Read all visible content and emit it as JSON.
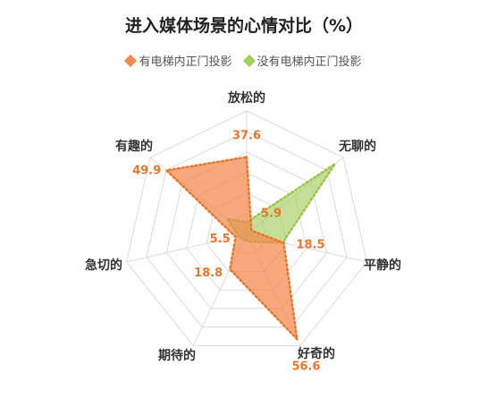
{
  "chart_data": {
    "type": "radar",
    "title": "进入媒体场景的心情对比（%）",
    "axes": [
      "放松的",
      "无聊的",
      "平静的",
      "好奇的",
      "期待的",
      "急切的",
      "有趣的"
    ],
    "series": [
      {
        "name": "有电梯内正门投影",
        "values": [
          37.6,
          3,
          18.5,
          56.6,
          18.8,
          5.5,
          49.9
        ],
        "labels": [
          "37.6",
          "",
          "18.5",
          "56.6",
          "18.8",
          "5.5",
          "49.9"
        ],
        "color": "#f4874a"
      },
      {
        "name": "没有电梯内正门投影",
        "values": [
          5.9,
          55,
          18,
          4,
          3,
          4,
          12
        ],
        "labels": [
          "5.9",
          "",
          "",
          "",
          "",
          "",
          ""
        ],
        "color": "#a6cf5e"
      }
    ],
    "rmax": 60,
    "rings": 6
  }
}
